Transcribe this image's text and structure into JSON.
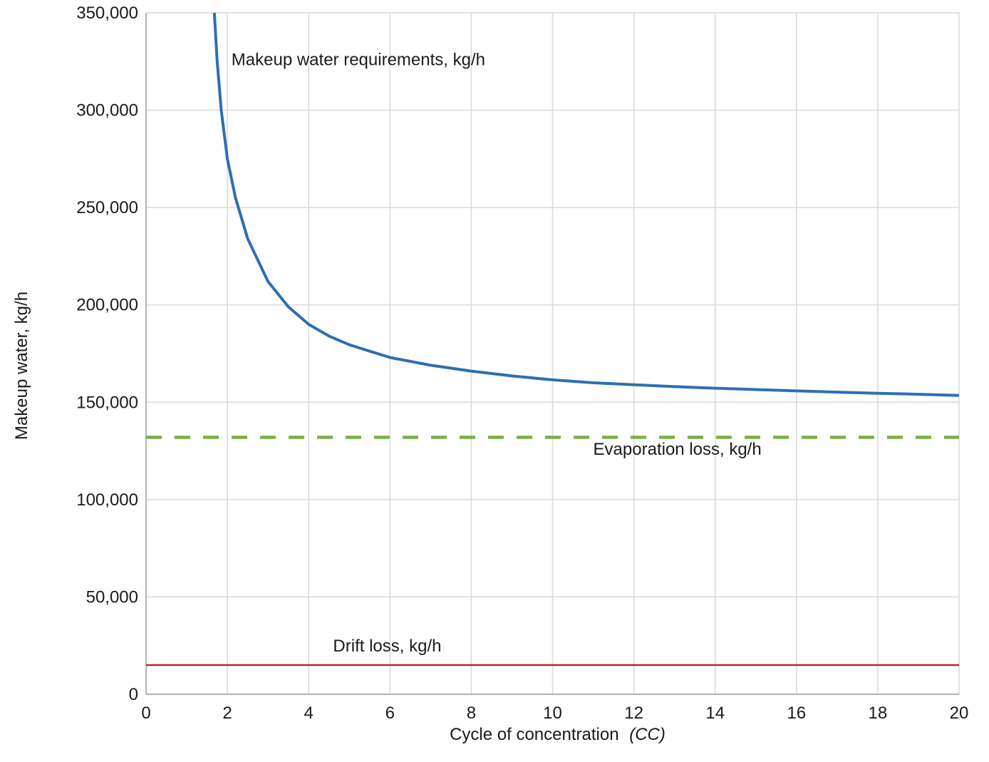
{
  "chart_data": {
    "type": "line",
    "xlabel": "Cycle of concentration",
    "xlabel_italic": "(CC)",
    "ylabel": "Makeup water, kg/h",
    "xlim": [
      0,
      20
    ],
    "ylim": [
      0,
      350000
    ],
    "x_ticks": [
      0,
      2,
      4,
      6,
      8,
      10,
      12,
      14,
      16,
      18,
      20
    ],
    "x_tick_labels": [
      "0",
      "2",
      "4",
      "6",
      "8",
      "10",
      "12",
      "14",
      "16",
      "18",
      "20"
    ],
    "y_ticks": [
      0,
      50000,
      100000,
      150000,
      200000,
      250000,
      300000,
      350000
    ],
    "y_tick_labels": [
      "0",
      "50,000",
      "100,000",
      "150,000",
      "200,000",
      "250,000",
      "300,000",
      "350,000"
    ],
    "grid": true,
    "series": [
      {
        "name": "Makeup water requirements, kg/h",
        "color": "#2e6fb0",
        "style": "solid",
        "points": [
          [
            1.68,
            350000
          ],
          [
            1.75,
            325000
          ],
          [
            1.85,
            300000
          ],
          [
            2.0,
            275000
          ],
          [
            2.2,
            255000
          ],
          [
            2.5,
            234000
          ],
          [
            3.0,
            212000
          ],
          [
            3.5,
            199000
          ],
          [
            4.0,
            190000
          ],
          [
            4.5,
            184000
          ],
          [
            5.0,
            179500
          ],
          [
            6.0,
            173000
          ],
          [
            7.0,
            169000
          ],
          [
            8.0,
            166000
          ],
          [
            9.0,
            163500
          ],
          [
            10.0,
            161500
          ],
          [
            11.0,
            160000
          ],
          [
            12.0,
            159000
          ],
          [
            13.0,
            158000
          ],
          [
            14.0,
            157200
          ],
          [
            15.0,
            156500
          ],
          [
            16.0,
            155800
          ],
          [
            17.0,
            155200
          ],
          [
            18.0,
            154600
          ],
          [
            19.0,
            154100
          ],
          [
            20.0,
            153500
          ]
        ]
      },
      {
        "name": "Evaporation loss, kg/h",
        "color": "#7ead45",
        "style": "dashed",
        "points": [
          [
            0,
            132000
          ],
          [
            20,
            132000
          ]
        ]
      },
      {
        "name": "Drift loss, kg/h",
        "color": "#b22a2a",
        "style": "solid",
        "points": [
          [
            0,
            15000
          ],
          [
            20,
            15000
          ]
        ]
      }
    ],
    "annotations": [
      {
        "text": "Makeup water requirements, kg/h",
        "x": 2.1,
        "y": 323000
      },
      {
        "text": "Evaporation loss, kg/h",
        "x": 11.0,
        "y": 123000
      },
      {
        "text": "Drift loss, kg/h",
        "x": 4.6,
        "y": 22000
      }
    ]
  }
}
